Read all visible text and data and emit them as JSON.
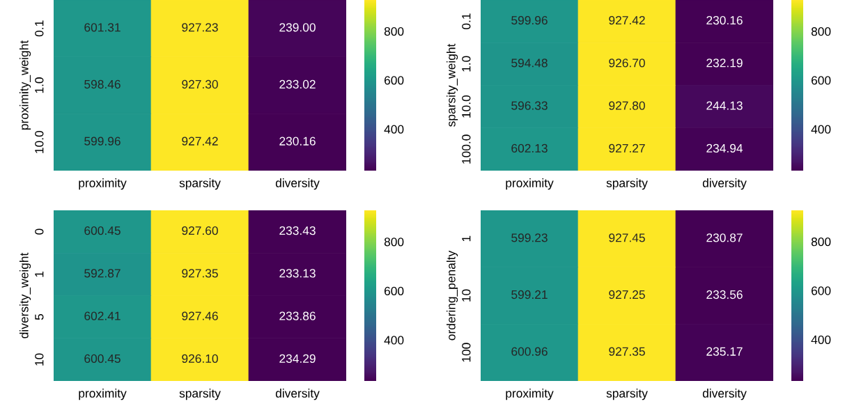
{
  "chart_data": [
    {
      "type": "heatmap",
      "ylabel": "proximity_weight",
      "categories": [
        "proximity",
        "sparsity",
        "diversity"
      ],
      "y_categories": [
        "0.1",
        "1.0",
        "10.0"
      ],
      "cells": [
        [
          601.31,
          927.23,
          239.0
        ],
        [
          598.46,
          927.3,
          233.02
        ],
        [
          599.96,
          927.42,
          230.16
        ]
      ],
      "cell_labels": [
        [
          "601.31",
          "927.23",
          "239.00"
        ],
        [
          "598.46",
          "927.30",
          "233.02"
        ],
        [
          "599.96",
          "927.42",
          "230.16"
        ]
      ],
      "clim": [
        230.16,
        927.42
      ],
      "cticks": [
        400,
        600,
        800
      ]
    },
    {
      "type": "heatmap",
      "ylabel": "sparsity_weight",
      "categories": [
        "proximity",
        "sparsity",
        "diversity"
      ],
      "y_categories": [
        "0.1",
        "1.0",
        "10.0",
        "100.0"
      ],
      "cells": [
        [
          599.96,
          927.42,
          230.16
        ],
        [
          594.48,
          926.7,
          232.19
        ],
        [
          596.33,
          927.8,
          244.13
        ],
        [
          602.13,
          927.27,
          234.94
        ]
      ],
      "cell_labels": [
        [
          "599.96",
          "927.42",
          "230.16"
        ],
        [
          "594.48",
          "926.70",
          "232.19"
        ],
        [
          "596.33",
          "927.80",
          "244.13"
        ],
        [
          "602.13",
          "927.27",
          "234.94"
        ]
      ],
      "clim": [
        230.16,
        927.8
      ],
      "cticks": [
        400,
        600,
        800
      ]
    },
    {
      "type": "heatmap",
      "ylabel": "diversity_weight",
      "categories": [
        "proximity",
        "sparsity",
        "diversity"
      ],
      "y_categories": [
        "0",
        "1",
        "5",
        "10"
      ],
      "cells": [
        [
          600.45,
          927.6,
          233.43
        ],
        [
          592.87,
          927.35,
          233.13
        ],
        [
          602.41,
          927.46,
          233.86
        ],
        [
          600.45,
          926.1,
          234.29
        ]
      ],
      "cell_labels": [
        [
          "600.45",
          "927.60",
          "233.43"
        ],
        [
          "592.87",
          "927.35",
          "233.13"
        ],
        [
          "602.41",
          "927.46",
          "233.86"
        ],
        [
          "600.45",
          "926.10",
          "234.29"
        ]
      ],
      "clim": [
        233.13,
        927.6
      ],
      "cticks": [
        400,
        600,
        800
      ]
    },
    {
      "type": "heatmap",
      "ylabel": "ordering_penalty",
      "categories": [
        "proximity",
        "sparsity",
        "diversity"
      ],
      "y_categories": [
        "1",
        "10",
        "100"
      ],
      "cells": [
        [
          599.23,
          927.45,
          230.87
        ],
        [
          599.21,
          927.25,
          233.56
        ],
        [
          600.96,
          927.35,
          235.17
        ]
      ],
      "cell_labels": [
        [
          "599.23",
          "927.45",
          "230.87"
        ],
        [
          "599.21",
          "927.25",
          "233.56"
        ],
        [
          "600.96",
          "927.35",
          "235.17"
        ]
      ],
      "clim": [
        230.87,
        927.45
      ],
      "cticks": [
        400,
        600,
        800
      ]
    }
  ]
}
